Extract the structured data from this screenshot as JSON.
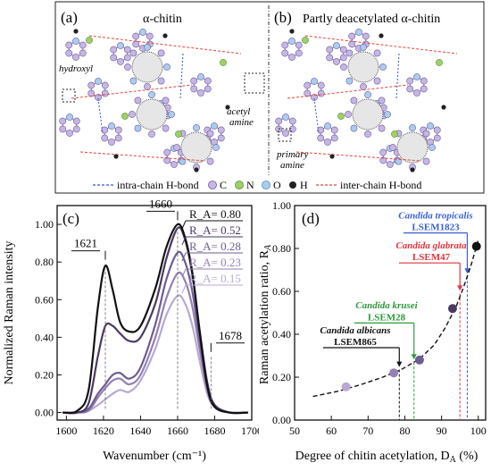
{
  "panel_a": {
    "letter": "(a)",
    "title": "α-chitin",
    "labels": {
      "hydroxyl": "hydroxyl",
      "acetyl": "acetyl",
      "amine": "amine"
    }
  },
  "panel_b": {
    "letter": "(b)",
    "title": "Partly deacetylated α-chitin",
    "labels": {
      "primary": "primary",
      "amine": "amine"
    }
  },
  "legend": {
    "intra": "intra-chain H-bond",
    "c": "C",
    "n": "N",
    "o": "O",
    "h": "H",
    "inter": "inter-chain H-bond",
    "colors": {
      "C": "#c6b6e6",
      "N": "#9ecf6a",
      "O": "#a9cdf0",
      "H": "#222222",
      "intra": "#3557c8",
      "inter": "#e0453a"
    }
  },
  "chart_data": [
    {
      "type": "line",
      "panel": "(c)",
      "xlabel": "Wavenumber (cm⁻¹)",
      "ylabel": "Normalized Raman intensity",
      "xlim": [
        1595,
        1700
      ],
      "ylim": [
        -0.04,
        1.1
      ],
      "x_ticks": [
        1600,
        1620,
        1640,
        1660,
        1680,
        1700
      ],
      "y_ticks": [
        "0.00",
        "0.20",
        "0.40",
        "0.60",
        "0.80",
        "1.00"
      ],
      "y_tick_values": [
        0,
        0.2,
        0.4,
        0.6,
        0.8,
        1.0
      ],
      "peak_labels": [
        "1621",
        "1660",
        "1678"
      ],
      "peak_positions": [
        1621,
        1660,
        1678
      ],
      "series": [
        {
          "name": "R_A= 0.80",
          "color": "#111111",
          "values": [
            [
              1598,
              0.0
            ],
            [
              1606,
              0.01
            ],
            [
              1612,
              0.12
            ],
            [
              1617,
              0.56
            ],
            [
              1621,
              0.78
            ],
            [
              1625,
              0.65
            ],
            [
              1629,
              0.48
            ],
            [
              1634,
              0.43
            ],
            [
              1640,
              0.46
            ],
            [
              1648,
              0.66
            ],
            [
              1654,
              0.88
            ],
            [
              1660,
              1.0
            ],
            [
              1664,
              0.93
            ],
            [
              1668,
              0.74
            ],
            [
              1672,
              0.42
            ],
            [
              1676,
              0.14
            ],
            [
              1680,
              0.03
            ],
            [
              1688,
              0.0
            ],
            [
              1698,
              0.0
            ]
          ]
        },
        {
          "name": "R_A= 0.52",
          "color": "#4b3a63",
          "values": [
            [
              1598,
              0.0
            ],
            [
              1606,
              0.0
            ],
            [
              1612,
              0.05
            ],
            [
              1617,
              0.3
            ],
            [
              1621,
              0.46
            ],
            [
              1625,
              0.46
            ],
            [
              1629,
              0.42
            ],
            [
              1634,
              0.38
            ],
            [
              1640,
              0.4
            ],
            [
              1648,
              0.58
            ],
            [
              1654,
              0.82
            ],
            [
              1660,
              0.98
            ],
            [
              1664,
              0.92
            ],
            [
              1668,
              0.73
            ],
            [
              1672,
              0.43
            ],
            [
              1676,
              0.16
            ],
            [
              1680,
              0.04
            ],
            [
              1688,
              0.0
            ],
            [
              1698,
              0.0
            ]
          ]
        },
        {
          "name": "R_A= 0.28",
          "color": "#6f5c93",
          "values": [
            [
              1598,
              0.0
            ],
            [
              1606,
              0.0
            ],
            [
              1612,
              0.02
            ],
            [
              1617,
              0.1
            ],
            [
              1621,
              0.15
            ],
            [
              1625,
              0.2
            ],
            [
              1629,
              0.21
            ],
            [
              1634,
              0.18
            ],
            [
              1640,
              0.24
            ],
            [
              1648,
              0.47
            ],
            [
              1654,
              0.71
            ],
            [
              1660,
              0.85
            ],
            [
              1664,
              0.8
            ],
            [
              1668,
              0.64
            ],
            [
              1672,
              0.38
            ],
            [
              1676,
              0.14
            ],
            [
              1680,
              0.04
            ],
            [
              1688,
              0.0
            ],
            [
              1698,
              0.0
            ]
          ]
        },
        {
          "name": "R_A= 0.23",
          "color": "#9480b3",
          "values": [
            [
              1598,
              0.0
            ],
            [
              1606,
              0.0
            ],
            [
              1612,
              0.01
            ],
            [
              1617,
              0.08
            ],
            [
              1621,
              0.13
            ],
            [
              1625,
              0.17
            ],
            [
              1629,
              0.18
            ],
            [
              1634,
              0.15
            ],
            [
              1640,
              0.2
            ],
            [
              1648,
              0.4
            ],
            [
              1654,
              0.61
            ],
            [
              1660,
              0.74
            ],
            [
              1664,
              0.7
            ],
            [
              1668,
              0.56
            ],
            [
              1672,
              0.33
            ],
            [
              1676,
              0.12
            ],
            [
              1680,
              0.03
            ],
            [
              1688,
              0.0
            ],
            [
              1698,
              0.0
            ]
          ]
        },
        {
          "name": "R_A= 0.15",
          "color": "#b7a9d4",
          "values": [
            [
              1598,
              0.0
            ],
            [
              1606,
              0.0
            ],
            [
              1612,
              0.01
            ],
            [
              1617,
              0.04
            ],
            [
              1621,
              0.07
            ],
            [
              1625,
              0.1
            ],
            [
              1629,
              0.12
            ],
            [
              1634,
              0.11
            ],
            [
              1640,
              0.17
            ],
            [
              1648,
              0.34
            ],
            [
              1654,
              0.52
            ],
            [
              1660,
              0.62
            ],
            [
              1664,
              0.58
            ],
            [
              1668,
              0.46
            ],
            [
              1672,
              0.27
            ],
            [
              1676,
              0.1
            ],
            [
              1680,
              0.03
            ],
            [
              1688,
              0.0
            ],
            [
              1698,
              0.0
            ]
          ]
        }
      ]
    },
    {
      "type": "scatter",
      "panel": "(d)",
      "xlabel": "Degree of chitin acetylation, D",
      "xlabel_sub": "A",
      "xlabel_unit": " (%)",
      "ylabel": "Raman acetylation ratio, R",
      "ylabel_sub": "A",
      "xlim": [
        50,
        102
      ],
      "ylim": [
        0,
        1.0
      ],
      "x_ticks": [
        50,
        60,
        70,
        80,
        90,
        100
      ],
      "y_ticks": [
        "0.00",
        "0.20",
        "0.40",
        "0.60",
        "0.80",
        "1.00"
      ],
      "y_tick_values": [
        0,
        0.2,
        0.4,
        0.6,
        0.8,
        1.0
      ],
      "points": [
        {
          "x": 64,
          "y": 0.155,
          "color": "#b7a9d4"
        },
        {
          "x": 77,
          "y": 0.22,
          "color": "#9480b3"
        },
        {
          "x": 84,
          "y": 0.28,
          "color": "#6f5c93"
        },
        {
          "x": 93,
          "y": 0.52,
          "color": "#4b3a63"
        },
        {
          "x": 99.5,
          "y": 0.81,
          "color": "#111111"
        }
      ],
      "fit": [
        [
          55,
          0.11
        ],
        [
          62,
          0.135
        ],
        [
          68,
          0.165
        ],
        [
          74,
          0.2
        ],
        [
          79,
          0.235
        ],
        [
          84,
          0.285
        ],
        [
          88,
          0.35
        ],
        [
          91,
          0.43
        ],
        [
          94,
          0.53
        ],
        [
          96,
          0.62
        ],
        [
          98,
          0.72
        ],
        [
          100,
          0.84
        ]
      ],
      "annotations": [
        {
          "species": "Candida tropicalis",
          "strain": "LSEM1823",
          "color": "#3a5fd9",
          "x": 96,
          "y": 0.67
        },
        {
          "species": "Candida glabrata",
          "strain": "LSEM47",
          "color": "#e0353a",
          "x": 94.5,
          "y": 0.59
        },
        {
          "species": "Candida krusei",
          "strain": "LSEM28",
          "color": "#2f9a3a",
          "x": 82,
          "y": 0.27
        },
        {
          "species": "Candida albicans",
          "strain": "LSEM865",
          "color": "#111111",
          "x": 78.5,
          "y": 0.235
        }
      ]
    }
  ]
}
